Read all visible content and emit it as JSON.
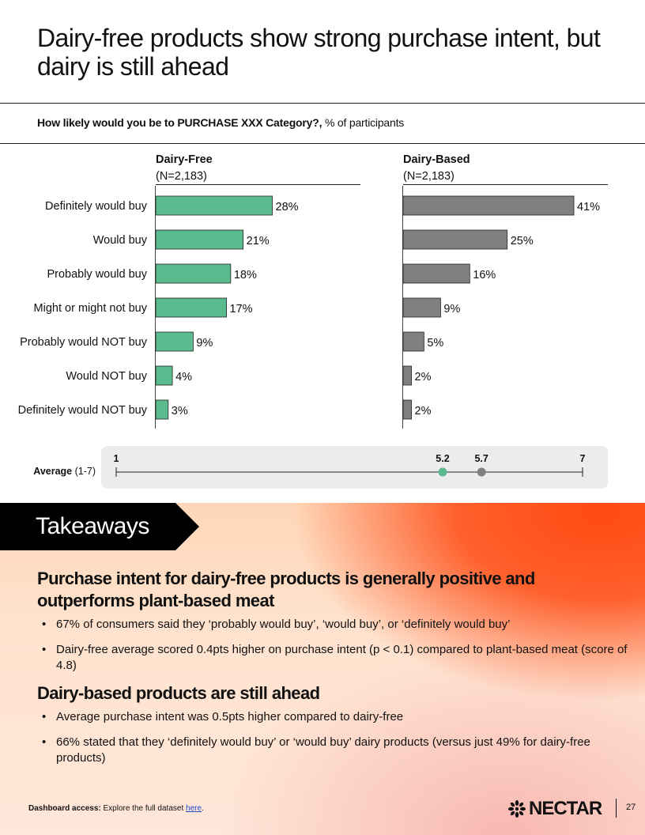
{
  "title": "Dairy-free products show strong purchase intent, but dairy is still ahead",
  "question": {
    "bold": "How likely would you be to PURCHASE XXX Category?,",
    "rest": " % of participants"
  },
  "chart_data": {
    "type": "bar",
    "orientation": "horizontal",
    "categories": [
      "Definitely would buy",
      "Would buy",
      "Probably would buy",
      "Might or might not buy",
      "Probably would NOT buy",
      "Would NOT buy",
      "Definitely would NOT buy"
    ],
    "series": [
      {
        "name": "Dairy-Free",
        "n_label": "(N=2,183)",
        "values": [
          28,
          21,
          18,
          17,
          9,
          4,
          3
        ],
        "labels": [
          "28%",
          "21%",
          "18%",
          "17%",
          "9%",
          "4%",
          "3%"
        ],
        "color": "#5cbb8e"
      },
      {
        "name": "Dairy-Based",
        "n_label": "(N=2,183)",
        "values": [
          41,
          25,
          16,
          9,
          5,
          2,
          2
        ],
        "labels": [
          "41%",
          "25%",
          "16%",
          "9%",
          "5%",
          "2%",
          "2%"
        ],
        "color": "#808080"
      }
    ],
    "xlim": [
      0,
      41
    ],
    "average": {
      "label_bold": "Average",
      "label_rest": " (1-7)",
      "min": 1,
      "max": 7,
      "min_label": "1",
      "max_label": "7",
      "points": [
        {
          "series": "Dairy-Free",
          "value": 5.2,
          "label": "5.2",
          "color": "#5cbb8e"
        },
        {
          "series": "Dairy-Based",
          "value": 5.7,
          "label": "5.7",
          "color": "#808080"
        }
      ]
    }
  },
  "takeaways": {
    "tab": "Takeaways",
    "sections": [
      {
        "heading": "Purchase intent for dairy-free products is generally positive and outperforms plant-based meat",
        "bullets": [
          "67% of consumers said they ‘probably would buy’, ‘would buy’, or ‘definitely would buy’",
          "Dairy-free average scored 0.4pts higher on purchase intent (p < 0.1) compared to plant-based meat (score of 4.8)"
        ]
      },
      {
        "heading": "Dairy-based products are still ahead",
        "bullets": [
          "Average purchase intent was 0.5pts higher compared to dairy-free",
          "66% stated that they ‘definitely would buy’ or ‘would buy’ dairy products (versus just 49% for dairy-free products)"
        ]
      }
    ]
  },
  "footer": {
    "label": "Dashboard access:",
    "text": " Explore the full dataset ",
    "link": "here",
    "end": ".",
    "logo": "NECTAR",
    "logo_icon": "nectar-flower-icon",
    "page": "27"
  }
}
